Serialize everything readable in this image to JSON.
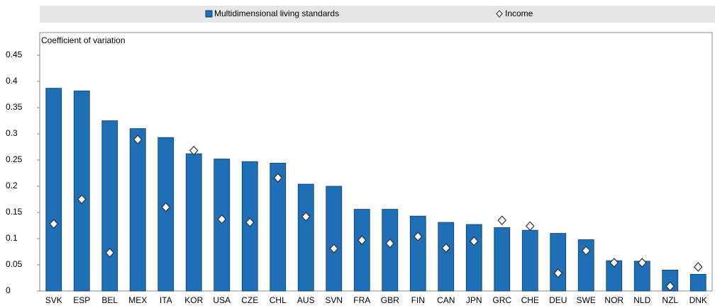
{
  "chart_data": {
    "type": "bar",
    "y_label": "Coefficient of variation",
    "categories": [
      "SVK",
      "ESP",
      "BEL",
      "MEX",
      "ITA",
      "KOR",
      "USA",
      "CZE",
      "CHL",
      "AUS",
      "SVN",
      "FRA",
      "GBR",
      "FIN",
      "CAN",
      "JPN",
      "GRC",
      "CHE",
      "DEU",
      "SWE",
      "NOR",
      "NLD",
      "NZL",
      "DNK"
    ],
    "series": [
      {
        "name": "Multidimensional living standards",
        "color": "#1f6fb6",
        "marker": "bar",
        "values": [
          0.387,
          0.382,
          0.325,
          0.31,
          0.293,
          0.262,
          0.252,
          0.247,
          0.244,
          0.204,
          0.2,
          0.156,
          0.156,
          0.143,
          0.131,
          0.127,
          0.121,
          0.116,
          0.11,
          0.098,
          0.058,
          0.057,
          0.04,
          0.032
        ]
      },
      {
        "name": "Income",
        "color": "#ffffff",
        "marker": "diamond",
        "values": [
          0.128,
          0.175,
          0.073,
          0.289,
          0.16,
          0.268,
          0.137,
          0.131,
          0.216,
          0.142,
          0.081,
          0.097,
          0.091,
          0.104,
          0.082,
          0.095,
          0.135,
          0.124,
          0.034,
          0.077,
          0.054,
          0.054,
          0.009,
          0.046
        ]
      }
    ],
    "ylim": [
      0,
      0.45
    ],
    "yticks": [
      0,
      0.05,
      0.1,
      0.15,
      0.2,
      0.25,
      0.3,
      0.35,
      0.4,
      0.45
    ]
  }
}
